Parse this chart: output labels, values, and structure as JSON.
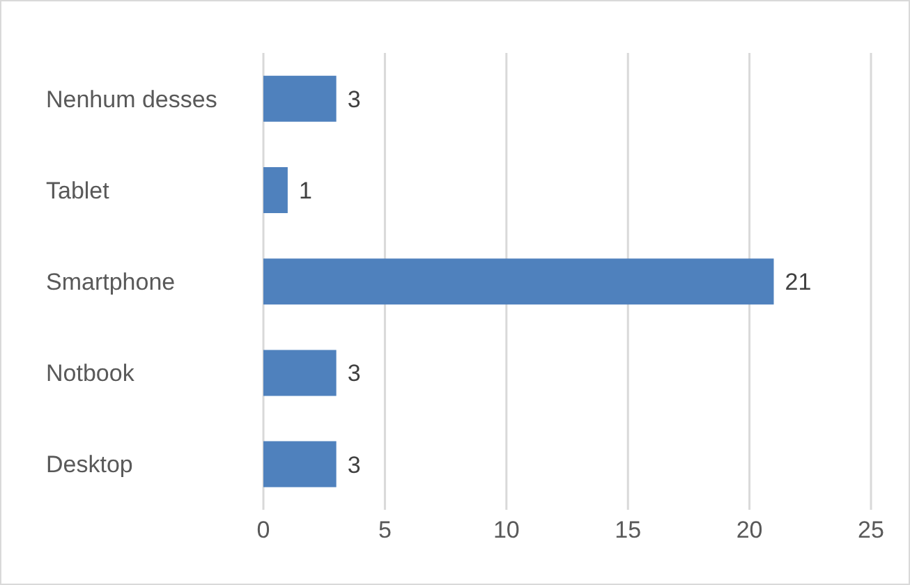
{
  "chart_data": {
    "type": "bar",
    "orientation": "horizontal",
    "categories": [
      "Nenhum desses",
      "Tablet",
      "Smartphone",
      "Notbook",
      "Desktop"
    ],
    "values": [
      3,
      1,
      21,
      3,
      3
    ],
    "color": "#4f81bd",
    "xlim": [
      0,
      25
    ],
    "xticks": [
      0,
      5,
      10,
      15,
      20,
      25
    ],
    "grid": "x",
    "data_labels": true
  }
}
